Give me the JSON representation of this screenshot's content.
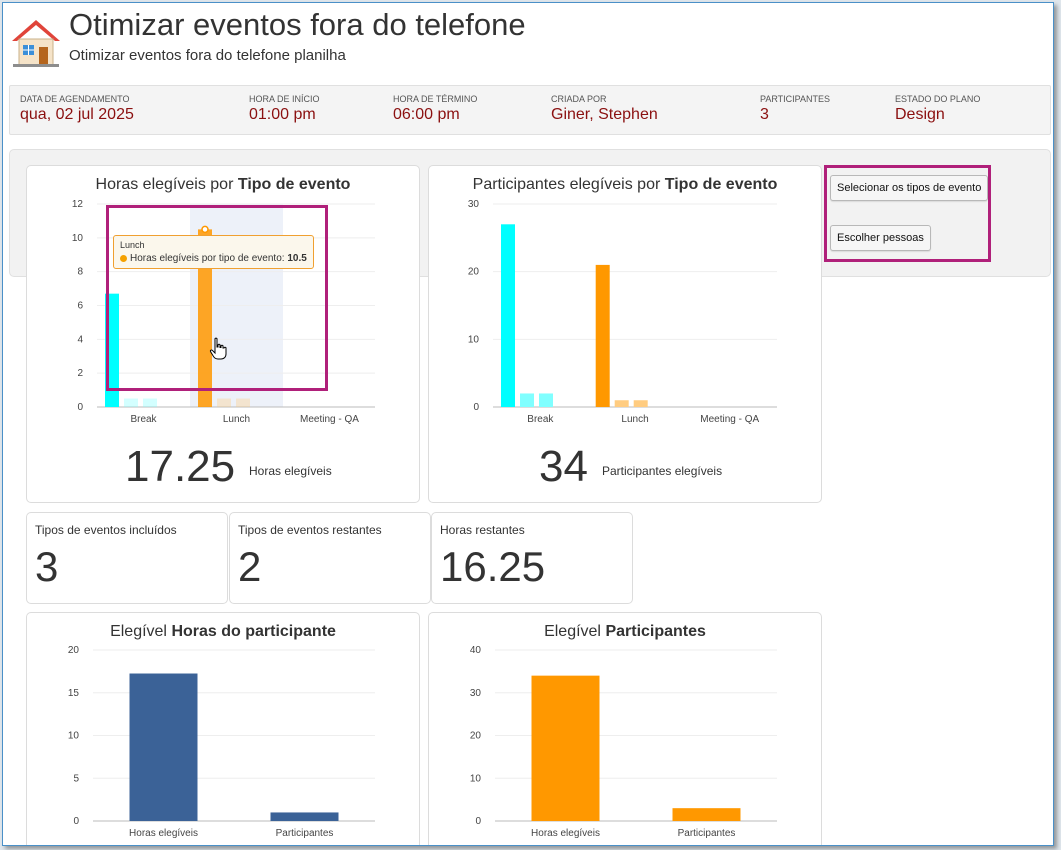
{
  "header": {
    "title": "Otimizar eventos fora do telefone",
    "subtitle": "Otimizar eventos fora do telefone planilha"
  },
  "info": [
    {
      "label": "DATA DE AGENDAMENTO",
      "value": "qua, 02 jul 2025"
    },
    {
      "label": "HORA DE INÍCIO",
      "value": "01:00 pm"
    },
    {
      "label": "HORA DE TÉRMINO",
      "value": "06:00 pm"
    },
    {
      "label": "CRIADA POR",
      "value": "Giner, Stephen"
    },
    {
      "label": "PARTICIPANTES",
      "value": "3"
    },
    {
      "label": "ESTADO DO PLANO",
      "value": "Design"
    }
  ],
  "buttons": {
    "select_event_types": "Selecionar os tipos de evento",
    "choose_people": "Escolher pessoas"
  },
  "cards": {
    "hours": {
      "title_prefix": "Horas elegíveis por ",
      "title_bold": "Tipo de evento",
      "big": "17.25",
      "big_label": "Horas elegíveis"
    },
    "participants": {
      "title_prefix": "Participantes elegíveis por ",
      "title_bold": "Tipo de evento",
      "big": "34",
      "big_label": "Participantes elegíveis"
    },
    "participant_hours": {
      "title_prefix": "Elegível ",
      "title_bold": "Horas do participante"
    },
    "eligible_participants": {
      "title_prefix": "Elegível ",
      "title_bold": "Participantes"
    }
  },
  "stats": [
    {
      "label": "Tipos de eventos incluídos",
      "value": "3"
    },
    {
      "label": "Tipos de eventos restantes",
      "value": "2"
    },
    {
      "label": "Horas restantes",
      "value": "16.25"
    }
  ],
  "tooltip": {
    "category": "Lunch",
    "series_label": "Horas elegíveis por tipo de evento: ",
    "value": "10.5"
  },
  "colors": {
    "cyan": "#00ffff",
    "cyan_light": "#80ffff",
    "orange": "#ff9800",
    "orange_light": "#ffcc80",
    "blue": "#3b6297",
    "value_red": "#8b1010"
  },
  "chart_data": [
    {
      "type": "bar",
      "categories": [
        "Break",
        "Lunch",
        "Meeting - QA"
      ],
      "series": [
        {
          "values": [
            6.7,
            10.5,
            0
          ]
        },
        {
          "values": [
            0.5,
            0.5,
            0
          ]
        },
        {
          "values": [
            0.5,
            0.5,
            0
          ]
        }
      ],
      "yticks": [
        "0",
        "2",
        "4",
        "6",
        "8",
        "10",
        "12"
      ],
      "ylim": [
        0,
        12
      ]
    },
    {
      "type": "bar",
      "categories": [
        "Break",
        "Lunch",
        "Meeting - QA"
      ],
      "series": [
        {
          "values": [
            27,
            21,
            0
          ]
        },
        {
          "values": [
            2,
            1,
            0
          ]
        },
        {
          "values": [
            2,
            1,
            0
          ]
        }
      ],
      "yticks": [
        "0",
        "10",
        "20",
        "30"
      ],
      "ylim": [
        0,
        30
      ]
    },
    {
      "type": "bar",
      "categories": [
        "Horas elegíveis",
        "Participantes"
      ],
      "values": [
        17.25,
        1
      ],
      "yticks": [
        "0",
        "5",
        "10",
        "15",
        "20"
      ],
      "ylim": [
        0,
        20
      ]
    },
    {
      "type": "bar",
      "categories": [
        "Horas elegíveis",
        "Participantes"
      ],
      "values": [
        34,
        3
      ],
      "yticks": [
        "0",
        "10",
        "20",
        "30",
        "40"
      ],
      "ylim": [
        0,
        40
      ]
    }
  ]
}
